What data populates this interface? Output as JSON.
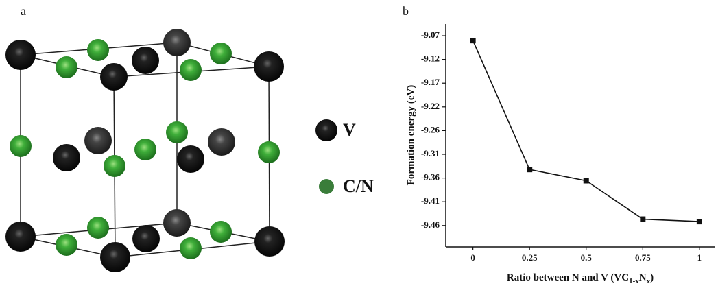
{
  "structure": {
    "label": "a",
    "legend": [
      "V",
      "C/N"
    ]
  },
  "chart_data": {
    "type": "line",
    "label": "b",
    "xlabel": [
      "Ratio between N and V (VC",
      "1-x",
      "N",
      "x",
      ")"
    ],
    "ylabel": "Formation energy (eV)",
    "x": [
      0,
      0.25,
      0.5,
      0.75,
      1
    ],
    "series": [
      {
        "color": "#111111",
        "values": [
          -9.08,
          -9.345,
          -9.368,
          -9.447,
          -9.452
        ]
      }
    ],
    "xlim": [
      -0.12,
      1.07
    ],
    "xticks": [
      0,
      0.25,
      0.5,
      0.75,
      1
    ],
    "ylim": [
      -9.504,
      -9.046
    ],
    "yticks": [
      -9.07,
      {
        "value": -9.11875,
        "label": "-9.12"
      },
      {
        "value": -9.1675,
        "label": "-9.17"
      },
      {
        "value": -9.21625,
        "label": "-9.22"
      },
      {
        "value": -9.265,
        "label": "-9.26"
      },
      {
        "value": -9.31375,
        "label": "-9.31"
      },
      {
        "value": -9.3625,
        "label": "-9.36"
      },
      {
        "value": -9.41125,
        "label": "-9.41"
      },
      -9.46
    ]
  }
}
